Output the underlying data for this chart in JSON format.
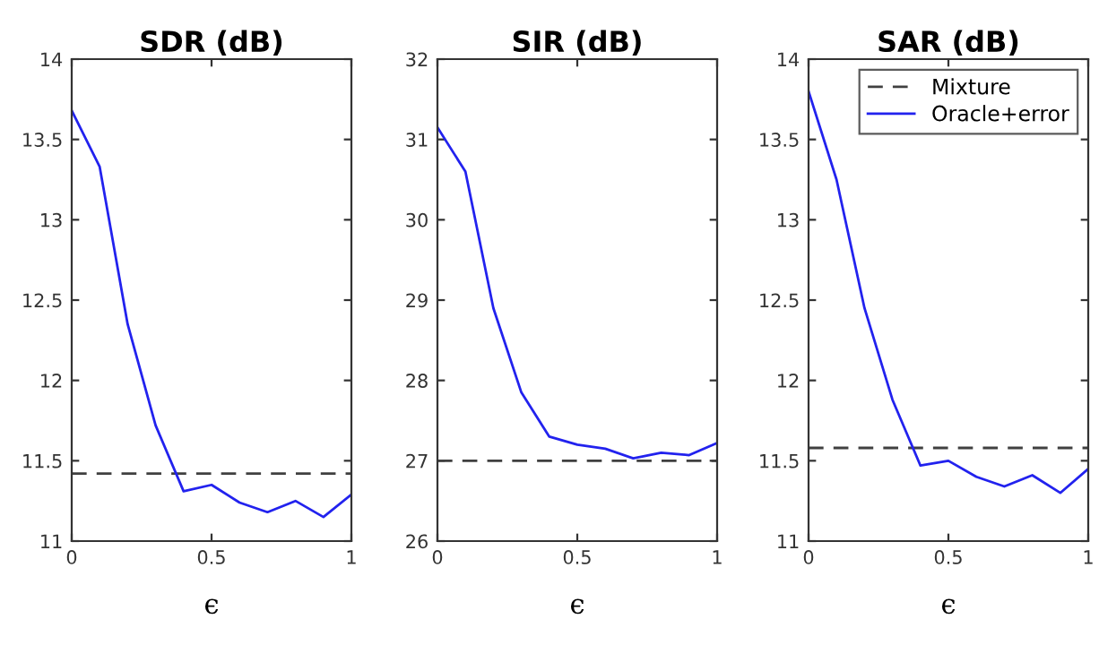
{
  "chart_data": [
    {
      "type": "line",
      "title": "SDR (dB)",
      "xlabel": "ϵ",
      "xlim": [
        0,
        1
      ],
      "xticks": [
        0,
        0.5,
        1
      ],
      "ylim": [
        11,
        14
      ],
      "yticks": [
        11,
        11.5,
        12,
        12.5,
        13,
        13.5,
        14
      ],
      "grid": false,
      "x": [
        0,
        0.1,
        0.2,
        0.3,
        0.4,
        0.5,
        0.6,
        0.7,
        0.8,
        0.9,
        1
      ],
      "series": [
        {
          "color": "#404040",
          "line_style": "dashed",
          "values": [
            11.42,
            11.42,
            11.42,
            11.42,
            11.42,
            11.42,
            11.42,
            11.42,
            11.42,
            11.42,
            11.42
          ]
        },
        {
          "color": "#2222ee",
          "line_style": "solid",
          "values": [
            13.68,
            13.33,
            12.35,
            11.72,
            11.31,
            11.35,
            11.24,
            11.18,
            11.25,
            11.15,
            11.29
          ]
        }
      ]
    },
    {
      "type": "line",
      "title": "SIR (dB)",
      "xlabel": "ϵ",
      "xlim": [
        0,
        1
      ],
      "xticks": [
        0,
        0.5,
        1
      ],
      "ylim": [
        26,
        32
      ],
      "yticks": [
        26,
        27,
        28,
        29,
        30,
        31,
        32
      ],
      "grid": false,
      "x": [
        0,
        0.1,
        0.2,
        0.3,
        0.4,
        0.5,
        0.6,
        0.7,
        0.8,
        0.9,
        1
      ],
      "series": [
        {
          "color": "#404040",
          "line_style": "dashed",
          "values": [
            27.0,
            27.0,
            27.0,
            27.0,
            27.0,
            27.0,
            27.0,
            27.0,
            27.0,
            27.0,
            27.0
          ]
        },
        {
          "color": "#2222ee",
          "line_style": "solid",
          "values": [
            31.15,
            30.6,
            28.9,
            27.85,
            27.3,
            27.2,
            27.15,
            27.03,
            27.1,
            27.07,
            27.22
          ]
        }
      ]
    },
    {
      "type": "line",
      "title": "SAR (dB)",
      "xlabel": "ϵ",
      "xlim": [
        0,
        1
      ],
      "xticks": [
        0,
        0.5,
        1
      ],
      "ylim": [
        11,
        14
      ],
      "yticks": [
        11,
        11.5,
        12,
        12.5,
        13,
        13.5,
        14
      ],
      "grid": false,
      "legend": "top right",
      "x": [
        0,
        0.1,
        0.2,
        0.3,
        0.4,
        0.5,
        0.6,
        0.7,
        0.8,
        0.9,
        1
      ],
      "series": [
        {
          "name": "Mixture",
          "color": "#404040",
          "line_style": "dashed",
          "values": [
            11.58,
            11.58,
            11.58,
            11.58,
            11.58,
            11.58,
            11.58,
            11.58,
            11.58,
            11.58,
            11.58
          ]
        },
        {
          "name": "Oracle+error",
          "color": "#2222ee",
          "line_style": "solid",
          "values": [
            13.8,
            13.25,
            12.45,
            11.88,
            11.47,
            11.5,
            11.4,
            11.34,
            11.41,
            11.3,
            11.45
          ]
        }
      ]
    }
  ]
}
